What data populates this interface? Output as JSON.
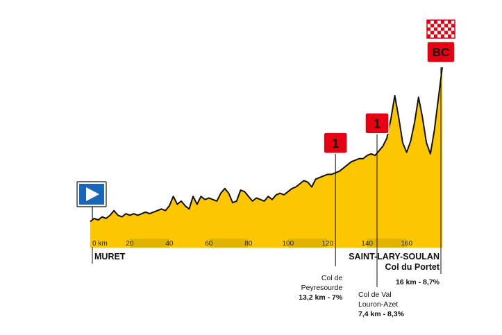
{
  "chart_data": {
    "type": "area",
    "x_ticks": [
      "0 km",
      "20",
      "40",
      "60",
      "80",
      "100",
      "120",
      "140",
      "160"
    ],
    "xlim": [
      0,
      178
    ],
    "x": [
      0,
      2,
      4,
      6,
      8,
      10,
      12,
      14,
      16,
      18,
      20,
      22,
      24,
      26,
      28,
      30,
      32,
      34,
      36,
      38,
      40,
      42,
      44,
      46,
      48,
      50,
      52,
      54,
      56,
      58,
      60,
      62,
      64,
      66,
      68,
      70,
      72,
      74,
      76,
      78,
      80,
      82,
      84,
      86,
      88,
      90,
      92,
      94,
      96,
      98,
      100,
      102,
      104,
      106,
      108,
      110,
      112,
      114,
      116,
      118,
      120,
      122,
      124,
      126,
      128,
      130,
      132,
      134,
      136,
      138,
      140,
      142,
      144,
      146,
      148,
      150,
      152,
      154,
      156,
      158,
      160,
      162,
      164,
      166,
      168,
      170,
      172,
      174,
      176,
      178
    ],
    "elevation_relative": [
      0.02,
      0.04,
      0.03,
      0.05,
      0.04,
      0.06,
      0.09,
      0.06,
      0.05,
      0.07,
      0.06,
      0.07,
      0.06,
      0.07,
      0.08,
      0.07,
      0.08,
      0.09,
      0.1,
      0.09,
      0.12,
      0.18,
      0.13,
      0.15,
      0.12,
      0.1,
      0.18,
      0.13,
      0.18,
      0.16,
      0.17,
      0.16,
      0.15,
      0.2,
      0.23,
      0.2,
      0.14,
      0.15,
      0.22,
      0.21,
      0.18,
      0.15,
      0.17,
      0.16,
      0.15,
      0.18,
      0.16,
      0.19,
      0.2,
      0.19,
      0.21,
      0.23,
      0.24,
      0.26,
      0.28,
      0.27,
      0.24,
      0.29,
      0.3,
      0.31,
      0.32,
      0.32,
      0.33,
      0.34,
      0.36,
      0.38,
      0.4,
      0.41,
      0.42,
      0.42,
      0.44,
      0.45,
      0.44,
      0.47,
      0.5,
      0.55,
      0.67,
      0.82,
      0.68,
      0.52,
      0.46,
      0.53,
      0.65,
      0.81,
      0.68,
      0.52,
      0.45,
      0.6,
      0.8,
      1.0
    ]
  },
  "start_town": "MURET",
  "finish": {
    "name": "SAINT-LARY-SOULAN",
    "climb_name": "Col du Portet",
    "stats": "16 km - 8,7%",
    "category": "BC"
  },
  "climbs": [
    {
      "km": 124,
      "category": "1",
      "name_lines": [
        "Col de",
        "Peyresourde"
      ],
      "stats": "13,2 km - 7%"
    },
    {
      "km": 145,
      "category": "1",
      "name_lines": [
        "Col de Val",
        "Louron-Azet"
      ],
      "stats": "7,4 km - 8,3%"
    }
  ],
  "colors": {
    "fill": "#fcc600",
    "outline": "#111111",
    "axis_band": "#fcc600",
    "axis_band_alt": "#e0b400",
    "marker_red": "#e60012",
    "start_flag": "#1a66b8"
  },
  "icons": {
    "start": "start-flag-icon",
    "finish": "checkered-finish-flag-icon",
    "climb": "category-climb-badge-icon"
  }
}
